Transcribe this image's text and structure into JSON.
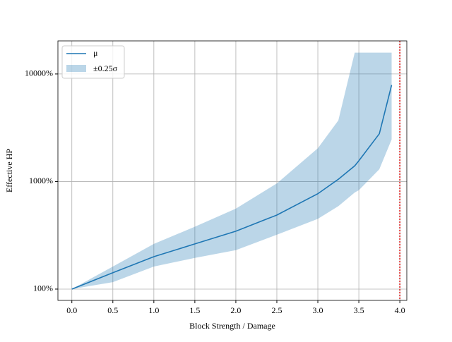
{
  "chart_data": {
    "type": "line",
    "xlabel": "Block Strength / Damage",
    "ylabel": "Effective HP",
    "x": [
      0,
      0.5,
      1,
      1.5,
      2,
      2.5,
      3,
      3.25,
      3.45,
      3.5,
      3.75,
      3.9
    ],
    "series": [
      {
        "name": "μ",
        "color": "#1f77b4",
        "values": [
          100,
          142,
          200,
          263,
          345,
          488,
          770,
          1050,
          1400,
          1560,
          2780,
          7900
        ]
      }
    ],
    "band": {
      "name": "±0.25σ",
      "color": "#1f77b4",
      "upper": [
        100,
        162,
        263,
        380,
        560,
        960,
        2040,
        3700,
        15800,
        15800,
        15800,
        15800
      ],
      "lower": [
        100,
        116,
        162,
        195,
        230,
        320,
        450,
        590,
        790,
        830,
        1300,
        2460
      ]
    },
    "vline": {
      "x": 4,
      "color": "#e00000"
    },
    "xlim": [
      -0.17,
      4.085
    ],
    "ylim": [
      78.5,
      20300
    ],
    "log_y": true,
    "grid": true,
    "legend": "upper left",
    "xticks": [
      {
        "value": 0,
        "label": "0.0"
      },
      0.5,
      {
        "value": 1,
        "label": "1.0"
      },
      1.5,
      {
        "value": 2,
        "label": "2.0"
      },
      2.5,
      {
        "value": 3,
        "label": "3.0"
      },
      3.5,
      {
        "value": 4,
        "label": "4.0"
      }
    ],
    "yticks": [
      {
        "value": 100,
        "label": "100%"
      },
      {
        "value": 1000,
        "label": "1000%"
      },
      {
        "value": 10000,
        "label": "10000%"
      }
    ]
  }
}
